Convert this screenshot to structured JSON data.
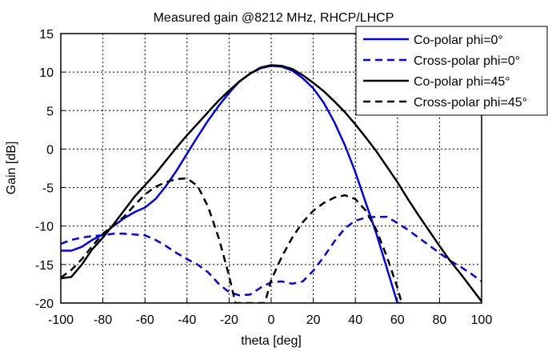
{
  "chart_data": {
    "type": "line",
    "title": "Measured gain @8212 MHz, RHCP/LHCP",
    "xlabel": "theta [deg]",
    "ylabel": "Gain [dB]",
    "xlim": [
      -100,
      100
    ],
    "ylim": [
      -20,
      15
    ],
    "xticks": [
      -100,
      -80,
      -60,
      -40,
      -20,
      0,
      20,
      40,
      60,
      80,
      100
    ],
    "yticks": [
      -20,
      -15,
      -10,
      -5,
      0,
      5,
      10,
      15
    ],
    "grid": true,
    "legend_position": "top-right",
    "series": [
      {
        "name": "Co-polar phi=0°",
        "color": "#0000ff",
        "dash": "solid",
        "x": [
          -100,
          -95,
          -90,
          -85,
          -80,
          -75,
          -70,
          -65,
          -60,
          -55,
          -50,
          -45,
          -40,
          -35,
          -30,
          -25,
          -20,
          -15,
          -10,
          -5,
          0,
          5,
          10,
          15,
          20,
          25,
          30,
          35,
          40,
          45,
          50,
          55,
          60,
          62
        ],
        "y": [
          -13.2,
          -13.2,
          -12.7,
          -11.8,
          -11.1,
          -10.0,
          -9.0,
          -8.2,
          -7.6,
          -6.5,
          -4.8,
          -2.8,
          -0.6,
          1.6,
          3.7,
          5.6,
          7.3,
          8.8,
          9.8,
          10.5,
          10.8,
          10.7,
          10.2,
          9.2,
          7.9,
          6.0,
          3.5,
          0.5,
          -3.0,
          -7.0,
          -11.0,
          -15.5,
          -20.0,
          -20.0
        ]
      },
      {
        "name": "Cross-polar phi=0°",
        "color": "#0000ff",
        "dash": "dashed",
        "x": [
          -100,
          -95,
          -90,
          -85,
          -80,
          -75,
          -70,
          -65,
          -60,
          -55,
          -50,
          -45,
          -40,
          -35,
          -30,
          -25,
          -20,
          -15,
          -10,
          -5,
          0,
          5,
          10,
          15,
          20,
          25,
          30,
          35,
          40,
          45,
          50,
          55,
          60,
          65,
          70,
          75,
          80,
          85,
          90,
          95,
          100
        ],
        "y": [
          -12.3,
          -11.8,
          -11.5,
          -11.3,
          -11.2,
          -11.0,
          -11.0,
          -11.1,
          -11.2,
          -11.8,
          -12.6,
          -13.5,
          -14.3,
          -15.0,
          -16.0,
          -17.5,
          -18.6,
          -19.0,
          -18.9,
          -18.0,
          -17.3,
          -17.2,
          -17.5,
          -17.2,
          -15.8,
          -14.0,
          -12.0,
          -10.3,
          -9.3,
          -8.9,
          -8.8,
          -8.8,
          -9.6,
          -10.5,
          -11.5,
          -12.5,
          -13.5,
          -14.5,
          -15.3,
          -16.2,
          -17.2
        ]
      },
      {
        "name": "Co-polar phi=45°",
        "color": "#000000",
        "dash": "solid",
        "x": [
          -100,
          -95,
          -90,
          -85,
          -80,
          -75,
          -70,
          -65,
          -60,
          -55,
          -50,
          -45,
          -40,
          -35,
          -30,
          -25,
          -20,
          -15,
          -10,
          -5,
          0,
          5,
          10,
          15,
          20,
          25,
          30,
          35,
          40,
          45,
          50,
          55,
          60,
          65,
          70,
          75,
          80,
          85,
          90,
          95,
          100
        ],
        "y": [
          -16.8,
          -16.6,
          -15.0,
          -13.0,
          -11.5,
          -9.8,
          -8.0,
          -6.2,
          -4.7,
          -3.2,
          -1.5,
          0.2,
          1.8,
          3.3,
          4.8,
          6.3,
          7.6,
          8.8,
          9.8,
          10.6,
          10.9,
          10.8,
          10.4,
          9.6,
          8.6,
          7.5,
          6.2,
          4.8,
          3.2,
          1.5,
          -0.3,
          -2.3,
          -4.3,
          -6.5,
          -8.6,
          -10.6,
          -12.6,
          -14.5,
          -16.2,
          -18.0,
          -19.8
        ]
      },
      {
        "name": "Cross-polar phi=45°",
        "color": "#000000",
        "dash": "dashed",
        "x": [
          -100,
          -95,
          -90,
          -85,
          -80,
          -75,
          -70,
          -65,
          -60,
          -55,
          -50,
          -45,
          -40,
          -35,
          -30,
          -25,
          -20,
          -17,
          -15,
          -13,
          -11,
          -9,
          -7,
          -5,
          -3,
          0,
          5,
          10,
          15,
          20,
          25,
          30,
          35,
          40,
          45,
          50,
          55,
          60,
          62
        ],
        "y": [
          -16.7,
          -15.7,
          -14.3,
          -12.6,
          -11.0,
          -9.9,
          -8.8,
          -7.3,
          -5.9,
          -4.9,
          -4.3,
          -3.9,
          -3.8,
          -4.8,
          -7.5,
          -11.5,
          -16.5,
          -20.0,
          -20.0,
          -20.0,
          -20.0,
          -20.0,
          -20.0,
          -20.0,
          -20.0,
          -17.0,
          -14.0,
          -11.5,
          -9.5,
          -8.0,
          -7.0,
          -6.3,
          -6.0,
          -6.5,
          -8.0,
          -10.5,
          -14.0,
          -18.0,
          -20.0
        ]
      }
    ]
  }
}
